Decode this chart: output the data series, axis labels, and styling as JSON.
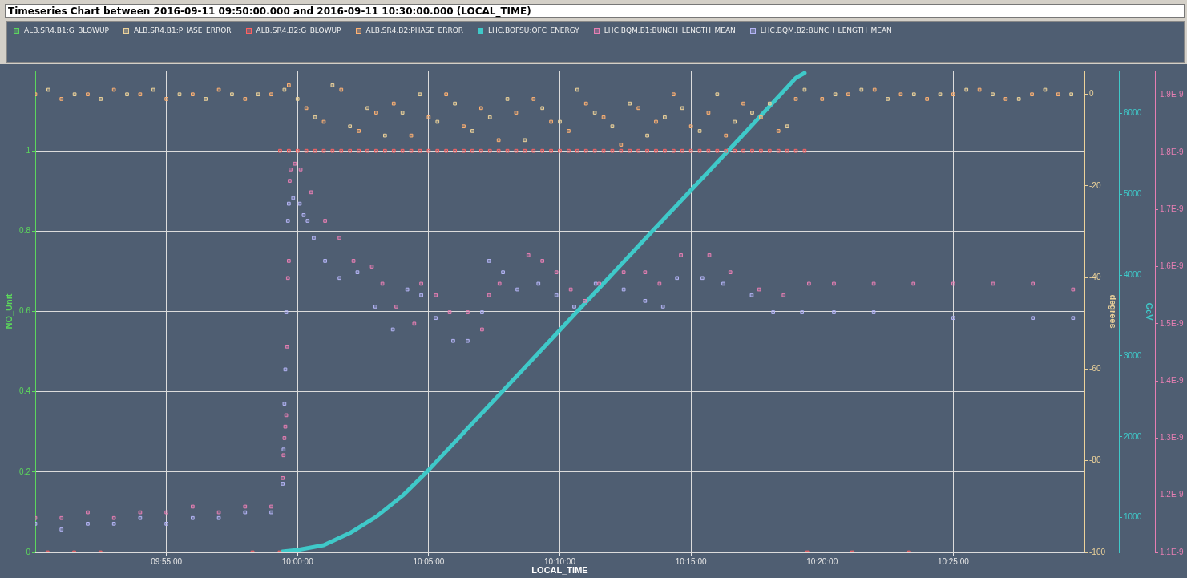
{
  "chart_data": [
    {
      "type": "scatter",
      "title": "Timeseries Chart between 2016-09-11 09:50:00.000 and 2016-09-11 10:30:00.000 (LOCAL_TIME)",
      "xlabel": "LOCAL_TIME",
      "ylabel": "NO_Unit",
      "y2label": "degrees",
      "y3label": "GeV",
      "xlim": [
        "2016-09-11T09:50",
        "2016-09-11T10:30"
      ],
      "xticks": [
        {
          "value": "2016-09-11T09:55",
          "label": "09:55:00"
        },
        {
          "value": "2016-09-11T10:00",
          "label": "10:00:00"
        },
        {
          "value": "2016-09-11T10:05",
          "label": "10:05:00"
        },
        {
          "value": "2016-09-11T10:10",
          "label": "10:10:00"
        },
        {
          "value": "2016-09-11T10:15",
          "label": "10:15:00"
        },
        {
          "value": "2016-09-11T10:20",
          "label": "10:20:00"
        },
        {
          "value": "2016-09-11T10:25",
          "label": "10:25:00"
        }
      ],
      "ylim": [
        0,
        1.2
      ],
      "yticks": [
        0,
        0.2,
        0.4,
        0.6,
        0.8,
        1
      ],
      "y2lim": [
        -100,
        5.2
      ],
      "y2ticks": [
        -100,
        -80,
        -60,
        -40,
        -20,
        0
      ],
      "y3lim": [
        570,
        6530
      ],
      "y3ticks": [
        1000,
        2000,
        3000,
        4000,
        5000,
        6000
      ],
      "grid": true,
      "legend": "top left",
      "marker": "square",
      "series": [
        {
          "name": "ALB.SR4.B1:G_BLOWUP",
          "color": "#5cd65c"
        },
        {
          "name": "ALB.SR4.B1:PHASE_ERROR",
          "color": "#ecd29a",
          "axis": "y2",
          "x": [
            "2016-09-11T09:50:30",
            "2016-09-11T09:51:30",
            "2016-09-11T09:52:30",
            "2016-09-11T09:53:30",
            "2016-09-11T09:54:30",
            "2016-09-11T09:55:30",
            "2016-09-11T09:56:30",
            "2016-09-11T09:57:30",
            "2016-09-11T09:58:30",
            "2016-09-11T09:59:30",
            "2016-09-11T10:00:00",
            "2016-09-11T10:00:40",
            "2016-09-11T10:01:20",
            "2016-09-11T10:02:00",
            "2016-09-11T10:02:40",
            "2016-09-11T10:03:20",
            "2016-09-11T10:04:00",
            "2016-09-11T10:04:40",
            "2016-09-11T10:05:20",
            "2016-09-11T10:06:00",
            "2016-09-11T10:06:40",
            "2016-09-11T10:07:20",
            "2016-09-11T10:08:00",
            "2016-09-11T10:08:40",
            "2016-09-11T10:09:20",
            "2016-09-11T10:10:00",
            "2016-09-11T10:10:40",
            "2016-09-11T10:11:20",
            "2016-09-11T10:12:00",
            "2016-09-11T10:12:40",
            "2016-09-11T10:13:20",
            "2016-09-11T10:14:00",
            "2016-09-11T10:14:40",
            "2016-09-11T10:15:20",
            "2016-09-11T10:16:00",
            "2016-09-11T10:16:40",
            "2016-09-11T10:17:20",
            "2016-09-11T10:18:00",
            "2016-09-11T10:18:40",
            "2016-09-11T10:19:20",
            "2016-09-11T10:20:30",
            "2016-09-11T10:21:30",
            "2016-09-11T10:22:30",
            "2016-09-11T10:23:30",
            "2016-09-11T10:24:30",
            "2016-09-11T10:25:30",
            "2016-09-11T10:26:30",
            "2016-09-11T10:27:30",
            "2016-09-11T10:28:30",
            "2016-09-11T10:29:30"
          ],
          "values": [
            1,
            0,
            -1,
            0,
            1,
            0,
            -1,
            0,
            0,
            1,
            -1,
            -5,
            2,
            -7,
            -3,
            -9,
            -4,
            0,
            -6,
            -2,
            -8,
            -5,
            -1,
            -10,
            -3,
            -6,
            1,
            -4,
            -7,
            -2,
            -9,
            -5,
            -3,
            -8,
            0,
            -6,
            -4,
            -2,
            -7,
            1,
            0,
            1,
            -1,
            0,
            0,
            1,
            0,
            -1,
            1,
            0
          ]
        },
        {
          "name": "ALB.SR4.B2:G_BLOWUP",
          "color": "#ff6262",
          "x": [
            "2016-09-11T09:50:28",
            "2016-09-11T09:51:29",
            "2016-09-11T09:52:29",
            "2016-09-11T09:58:17",
            "2016-09-11T09:59:19",
            "2016-09-11T09:59:20",
            "2016-09-11T09:59:40",
            "2016-09-11T10:00:00",
            "2016-09-11T10:00:20",
            "2016-09-11T10:00:40",
            "2016-09-11T10:01:00",
            "2016-09-11T10:01:20",
            "2016-09-11T10:01:40",
            "2016-09-11T10:02:00",
            "2016-09-11T10:02:20",
            "2016-09-11T10:02:40",
            "2016-09-11T10:03:00",
            "2016-09-11T10:03:20",
            "2016-09-11T10:03:40",
            "2016-09-11T10:04:00",
            "2016-09-11T10:04:20",
            "2016-09-11T10:04:40",
            "2016-09-11T10:05:00",
            "2016-09-11T10:05:20",
            "2016-09-11T10:05:40",
            "2016-09-11T10:06:00",
            "2016-09-11T10:06:20",
            "2016-09-11T10:06:40",
            "2016-09-11T10:07:00",
            "2016-09-11T10:07:20",
            "2016-09-11T10:07:40",
            "2016-09-11T10:08:00",
            "2016-09-11T10:08:20",
            "2016-09-11T10:08:40",
            "2016-09-11T10:09:00",
            "2016-09-11T10:09:20",
            "2016-09-11T10:09:40",
            "2016-09-11T10:10:00",
            "2016-09-11T10:10:20",
            "2016-09-11T10:10:40",
            "2016-09-11T10:11:00",
            "2016-09-11T10:11:20",
            "2016-09-11T10:11:40",
            "2016-09-11T10:12:00",
            "2016-09-11T10:12:20",
            "2016-09-11T10:12:40",
            "2016-09-11T10:13:00",
            "2016-09-11T10:13:20",
            "2016-09-11T10:13:40",
            "2016-09-11T10:14:00",
            "2016-09-11T10:14:20",
            "2016-09-11T10:14:40",
            "2016-09-11T10:15:00",
            "2016-09-11T10:15:20",
            "2016-09-11T10:15:40",
            "2016-09-11T10:16:00",
            "2016-09-11T10:16:20",
            "2016-09-11T10:16:40",
            "2016-09-11T10:17:00",
            "2016-09-11T10:17:20",
            "2016-09-11T10:17:40",
            "2016-09-11T10:18:00",
            "2016-09-11T10:18:20",
            "2016-09-11T10:18:40",
            "2016-09-11T10:19:00",
            "2016-09-11T10:19:20",
            "2016-09-11T10:19:26",
            "2016-09-11T10:21:09",
            "2016-09-11T10:23:19"
          ],
          "values": [
            0,
            0,
            0,
            0,
            0,
            1,
            1,
            1,
            1,
            1,
            1,
            1,
            1,
            1,
            1,
            1,
            1,
            1,
            1,
            1,
            1,
            1,
            1,
            1,
            1,
            1,
            1,
            1,
            1,
            1,
            1,
            1,
            1,
            1,
            1,
            1,
            1,
            1,
            1,
            1,
            1,
            1,
            1,
            1,
            1,
            1,
            1,
            1,
            1,
            1,
            1,
            1,
            1,
            1,
            1,
            1,
            1,
            1,
            1,
            1,
            1,
            1,
            1,
            1,
            1,
            1,
            0,
            0,
            0
          ]
        },
        {
          "name": "ALB.SR4.B2:PHASE_ERROR",
          "color": "#ffb273",
          "axis": "y2",
          "x": [
            "2016-09-11T09:50:00",
            "2016-09-11T09:51:00",
            "2016-09-11T09:52:00",
            "2016-09-11T09:53:00",
            "2016-09-11T09:54:00",
            "2016-09-11T09:55:00",
            "2016-09-11T09:56:00",
            "2016-09-11T09:57:00",
            "2016-09-11T09:58:00",
            "2016-09-11T09:59:00",
            "2016-09-11T09:59:40",
            "2016-09-11T10:00:20",
            "2016-09-11T10:01:00",
            "2016-09-11T10:01:40",
            "2016-09-11T10:02:20",
            "2016-09-11T10:03:00",
            "2016-09-11T10:03:40",
            "2016-09-11T10:04:20",
            "2016-09-11T10:05:00",
            "2016-09-11T10:05:40",
            "2016-09-11T10:06:20",
            "2016-09-11T10:07:00",
            "2016-09-11T10:07:40",
            "2016-09-11T10:08:20",
            "2016-09-11T10:09:00",
            "2016-09-11T10:09:40",
            "2016-09-11T10:10:20",
            "2016-09-11T10:11:00",
            "2016-09-11T10:11:40",
            "2016-09-11T10:12:20",
            "2016-09-11T10:13:00",
            "2016-09-11T10:13:40",
            "2016-09-11T10:14:20",
            "2016-09-11T10:15:00",
            "2016-09-11T10:15:40",
            "2016-09-11T10:16:20",
            "2016-09-11T10:17:00",
            "2016-09-11T10:17:40",
            "2016-09-11T10:18:20",
            "2016-09-11T10:19:00",
            "2016-09-11T10:20:00",
            "2016-09-11T10:21:00",
            "2016-09-11T10:22:00",
            "2016-09-11T10:23:00",
            "2016-09-11T10:24:00",
            "2016-09-11T10:25:00",
            "2016-09-11T10:26:00",
            "2016-09-11T10:27:00",
            "2016-09-11T10:28:00",
            "2016-09-11T10:29:00"
          ],
          "values": [
            0,
            -1,
            0,
            1,
            0,
            -1,
            0,
            1,
            -1,
            0,
            2,
            -3,
            -6,
            1,
            -8,
            -4,
            -2,
            -9,
            -5,
            0,
            -7,
            -3,
            -10,
            -4,
            -1,
            -6,
            -8,
            -2,
            -5,
            -11,
            -3,
            -6,
            0,
            -7,
            -4,
            -9,
            -2,
            -5,
            -8,
            -1,
            -1,
            0,
            1,
            0,
            -1,
            0,
            1,
            -1,
            0,
            0
          ]
        },
        {
          "name": "LHC.BOFSU:OFC_ENERGY",
          "type": "line",
          "marker": "none",
          "color": "#3fc9c9",
          "axis": "y3",
          "x": [
            "2016-09-11T09:59:25",
            "2016-09-11T10:00:00",
            "2016-09-11T10:01:00",
            "2016-09-11T10:02:00",
            "2016-09-11T10:03:00",
            "2016-09-11T10:04:00",
            "2016-09-11T10:05:00",
            "2016-09-11T10:07:00",
            "2016-09-11T10:10:00",
            "2016-09-11T10:13:00",
            "2016-09-11T10:15:00",
            "2016-09-11T10:17:00",
            "2016-09-11T10:19:00",
            "2016-09-11T10:19:20"
          ],
          "values": [
            580,
            600,
            660,
            810,
            1010,
            1270,
            1590,
            2280,
            3320,
            4360,
            5050,
            5740,
            6440,
            6500
          ]
        }
      ]
    },
    {
      "type": "scatter",
      "xlim": [
        "2016-09-11T09:50",
        "2016-09-11T10:30"
      ],
      "tick_labels": "y",
      "legend": "top right",
      "marker": "square",
      "ylim": [
        1.1e-09,
        1.943e-09
      ],
      "yticks": [
        {
          "value": 1.1e-09,
          "label": "1.1E-9"
        },
        {
          "value": 1.2e-09,
          "label": "1.2E-9"
        },
        {
          "value": 1.3e-09,
          "label": "1.3E-9"
        },
        {
          "value": 1.4e-09,
          "label": "1.4E-9"
        },
        {
          "value": 1.5e-09,
          "label": "1.5E-9"
        },
        {
          "value": 1.6e-09,
          "label": "1.6E-9"
        },
        {
          "value": 1.7e-09,
          "label": "1.7E-9"
        },
        {
          "value": 1.8e-09,
          "label": "1.8E-9"
        },
        {
          "value": 1.9e-09,
          "label": "1.9E-9"
        }
      ],
      "series": [
        {
          "name": "LHC.BQM.B1:BUNCH_LENGTH_MEAN",
          "color": "#e77fb3",
          "x": [
            "2016-09-11T09:50:00",
            "2016-09-11T09:51:00",
            "2016-09-11T09:52:00",
            "2016-09-11T09:53:00",
            "2016-09-11T09:54:00",
            "2016-09-11T09:55:00",
            "2016-09-11T09:56:00",
            "2016-09-11T09:57:00",
            "2016-09-11T09:58:00",
            "2016-09-11T09:59:00",
            "2016-09-11T09:59:26",
            "2016-09-11T09:59:28",
            "2016-09-11T09:59:30",
            "2016-09-11T09:59:32",
            "2016-09-11T09:59:34",
            "2016-09-11T09:59:36",
            "2016-09-11T09:59:38",
            "2016-09-11T09:59:40",
            "2016-09-11T09:59:42",
            "2016-09-11T09:59:44",
            "2016-09-11T09:59:54",
            "2016-09-11T10:00:07",
            "2016-09-11T10:00:31",
            "2016-09-11T10:01:03",
            "2016-09-11T10:01:36",
            "2016-09-11T10:02:08",
            "2016-09-11T10:02:50",
            "2016-09-11T10:03:14",
            "2016-09-11T10:03:46",
            "2016-09-11T10:04:27",
            "2016-09-11T10:04:43",
            "2016-09-11T10:05:16",
            "2016-09-11T10:05:48",
            "2016-09-11T10:06:29",
            "2016-09-11T10:07:02",
            "2016-09-11T10:07:18",
            "2016-09-11T10:07:42",
            "2016-09-11T10:08:48",
            "2016-09-11T10:09:20",
            "2016-09-11T10:09:52",
            "2016-09-11T10:10:25",
            "2016-09-11T10:10:57",
            "2016-09-11T10:11:30",
            "2016-09-11T10:12:26",
            "2016-09-11T10:13:15",
            "2016-09-11T10:13:48",
            "2016-09-11T10:14:37",
            "2016-09-11T10:15:42",
            "2016-09-11T10:16:30",
            "2016-09-11T10:17:36",
            "2016-09-11T10:18:32",
            "2016-09-11T10:19:30",
            "2016-09-11T10:20:27",
            "2016-09-11T10:21:58",
            "2016-09-11T10:23:29",
            "2016-09-11T10:25:00",
            "2016-09-11T10:26:31",
            "2016-09-11T10:28:02",
            "2016-09-11T10:29:34"
          ],
          "values": [
            1.16e-09,
            1.16e-09,
            1.17e-09,
            1.16e-09,
            1.17e-09,
            1.17e-09,
            1.18e-09,
            1.17e-09,
            1.18e-09,
            1.18e-09,
            1.23e-09,
            1.27e-09,
            1.3e-09,
            1.32e-09,
            1.34e-09,
            1.46e-09,
            1.58e-09,
            1.61e-09,
            1.75e-09,
            1.77e-09,
            1.78e-09,
            1.77e-09,
            1.73e-09,
            1.68e-09,
            1.65e-09,
            1.61e-09,
            1.6e-09,
            1.57e-09,
            1.53e-09,
            1.5e-09,
            1.57e-09,
            1.55e-09,
            1.52e-09,
            1.52e-09,
            1.49e-09,
            1.55e-09,
            1.57e-09,
            1.62e-09,
            1.61e-09,
            1.59e-09,
            1.56e-09,
            1.54e-09,
            1.57e-09,
            1.59e-09,
            1.59e-09,
            1.57e-09,
            1.62e-09,
            1.62e-09,
            1.59e-09,
            1.56e-09,
            1.55e-09,
            1.57e-09,
            1.57e-09,
            1.57e-09,
            1.57e-09,
            1.57e-09,
            1.57e-09,
            1.57e-09,
            1.56e-09
          ]
        },
        {
          "name": "LHC.BQM.B2:BUNCH_LENGTH_MEAN",
          "color": "#b4b4f5",
          "x": [
            "2016-09-11T09:50:00",
            "2016-09-11T09:51:00",
            "2016-09-11T09:52:00",
            "2016-09-11T09:53:00",
            "2016-09-11T09:54:00",
            "2016-09-11T09:55:00",
            "2016-09-11T09:56:00",
            "2016-09-11T09:57:00",
            "2016-09-11T09:58:00",
            "2016-09-11T09:59:00",
            "2016-09-11T09:59:26",
            "2016-09-11T09:59:28",
            "2016-09-11T09:59:30",
            "2016-09-11T09:59:32",
            "2016-09-11T09:59:34",
            "2016-09-11T09:59:38",
            "2016-09-11T09:59:40",
            "2016-09-11T09:59:50",
            "2016-09-11T10:00:05",
            "2016-09-11T10:00:14",
            "2016-09-11T10:00:23",
            "2016-09-11T10:00:37",
            "2016-09-11T10:01:03",
            "2016-09-11T10:01:36",
            "2016-09-11T10:02:17",
            "2016-09-11T10:02:58",
            "2016-09-11T10:03:38",
            "2016-09-11T10:04:11",
            "2016-09-11T10:04:43",
            "2016-09-11T10:05:16",
            "2016-09-11T10:05:56",
            "2016-09-11T10:06:29",
            "2016-09-11T10:07:02",
            "2016-09-11T10:07:18",
            "2016-09-11T10:07:50",
            "2016-09-11T10:08:23",
            "2016-09-11T10:09:11",
            "2016-09-11T10:09:52",
            "2016-09-11T10:10:33",
            "2016-09-11T10:11:22",
            "2016-09-11T10:12:26",
            "2016-09-11T10:13:15",
            "2016-09-11T10:13:56",
            "2016-09-11T10:14:28",
            "2016-09-11T10:15:26",
            "2016-09-11T10:16:14",
            "2016-09-11T10:17:19",
            "2016-09-11T10:18:08",
            "2016-09-11T10:19:14",
            "2016-09-11T10:20:27",
            "2016-09-11T10:21:58",
            "2016-09-11T10:25:00",
            "2016-09-11T10:28:02",
            "2016-09-11T10:29:34"
          ],
          "values": [
            1.15e-09,
            1.14e-09,
            1.15e-09,
            1.15e-09,
            1.16e-09,
            1.15e-09,
            1.16e-09,
            1.16e-09,
            1.17e-09,
            1.17e-09,
            1.22e-09,
            1.28e-09,
            1.36e-09,
            1.42e-09,
            1.52e-09,
            1.68e-09,
            1.71e-09,
            1.72e-09,
            1.71e-09,
            1.69e-09,
            1.68e-09,
            1.65e-09,
            1.61e-09,
            1.58e-09,
            1.59e-09,
            1.53e-09,
            1.49e-09,
            1.56e-09,
            1.55e-09,
            1.51e-09,
            1.47e-09,
            1.47e-09,
            1.52e-09,
            1.61e-09,
            1.59e-09,
            1.56e-09,
            1.57e-09,
            1.55e-09,
            1.53e-09,
            1.57e-09,
            1.56e-09,
            1.54e-09,
            1.53e-09,
            1.58e-09,
            1.58e-09,
            1.57e-09,
            1.55e-09,
            1.52e-09,
            1.52e-09,
            1.52e-09,
            1.52e-09,
            1.51e-09,
            1.51e-09,
            1.51e-09
          ]
        }
      ]
    }
  ]
}
